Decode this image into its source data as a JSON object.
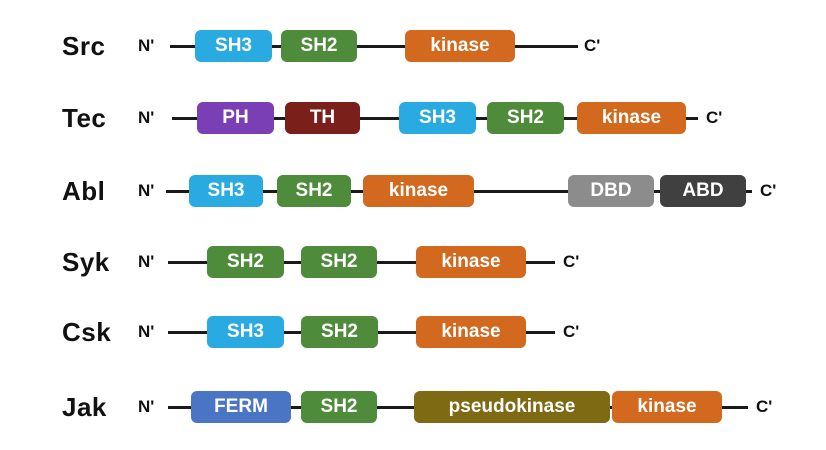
{
  "colors": {
    "SH3": "#29abe2",
    "SH2": "#4e8b3a",
    "kinase": "#d2691e",
    "PH": "#7b3fb5",
    "TH": "#7a1f1a",
    "DBD": "#8c8c8c",
    "ABD": "#404040",
    "FERM": "#4a74c4",
    "pseudokinase": "#7d6a12"
  },
  "termini": {
    "n": "N'",
    "c": "C'"
  },
  "families": [
    {
      "name": "Src",
      "domains": [
        {
          "type": "SH3",
          "label": "SH3"
        },
        {
          "type": "SH2",
          "label": "SH2"
        },
        {
          "type": "kinase",
          "label": "kinase"
        }
      ]
    },
    {
      "name": "Tec",
      "domains": [
        {
          "type": "PH",
          "label": "PH"
        },
        {
          "type": "TH",
          "label": "TH"
        },
        {
          "type": "SH3",
          "label": "SH3"
        },
        {
          "type": "SH2",
          "label": "SH2"
        },
        {
          "type": "kinase",
          "label": "kinase"
        }
      ]
    },
    {
      "name": "Abl",
      "domains": [
        {
          "type": "SH3",
          "label": "SH3"
        },
        {
          "type": "SH2",
          "label": "SH2"
        },
        {
          "type": "kinase",
          "label": "kinase"
        },
        {
          "type": "DBD",
          "label": "DBD"
        },
        {
          "type": "ABD",
          "label": "ABD"
        }
      ]
    },
    {
      "name": "Syk",
      "domains": [
        {
          "type": "SH2",
          "label": "SH2"
        },
        {
          "type": "SH2",
          "label": "SH2"
        },
        {
          "type": "kinase",
          "label": "kinase"
        }
      ]
    },
    {
      "name": "Csk",
      "domains": [
        {
          "type": "SH3",
          "label": "SH3"
        },
        {
          "type": "SH2",
          "label": "SH2"
        },
        {
          "type": "kinase",
          "label": "kinase"
        }
      ]
    },
    {
      "name": "Jak",
      "domains": [
        {
          "type": "FERM",
          "label": "FERM"
        },
        {
          "type": "SH2",
          "label": "SH2"
        },
        {
          "type": "pseudokinase",
          "label": "pseudokinase"
        },
        {
          "type": "kinase",
          "label": "kinase"
        }
      ]
    }
  ]
}
